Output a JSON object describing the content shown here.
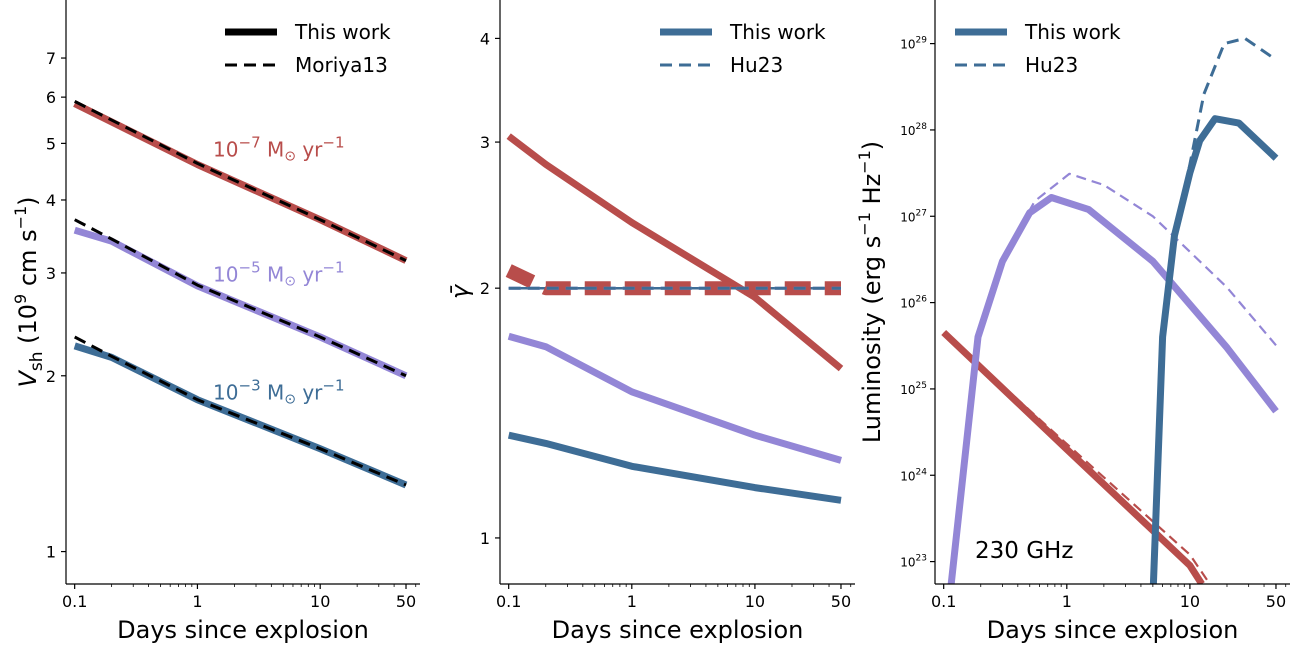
{
  "colors": {
    "red": "#b84d4b",
    "purple": "#9386d6",
    "blue": "#3e6d96",
    "black": "#000000"
  },
  "chart_data": [
    {
      "type": "line",
      "x_scale": "log",
      "y_scale": "log",
      "xlim": [
        0.085,
        65
      ],
      "ylim": [
        0.88,
        8.8
      ],
      "xticks": [
        0.1,
        1,
        10,
        50
      ],
      "xtick_labels": [
        "0.1",
        "1",
        "10",
        "50"
      ],
      "yticks": [
        1,
        2,
        3,
        4,
        5,
        6,
        7
      ],
      "ytick_labels": [
        "1",
        "2",
        "3",
        "4",
        "5",
        "6",
        "7"
      ],
      "xlabel": "Days since explosion",
      "ylabel": {
        "main": "V",
        "sub": "sh",
        "rest": " (10",
        "sup": "9",
        "unit": " cm s",
        "unitsup": "−1",
        "close": ")"
      },
      "legend": {
        "placement": "top-right",
        "entries": [
          {
            "label": "This work",
            "style": "solid-thick",
            "color": "#000000"
          },
          {
            "label": "Moriya13",
            "style": "dashed",
            "color": "#000000"
          }
        ]
      },
      "annotations": [
        {
          "base": "10",
          "exp": "−7",
          "unit": " M",
          "sun": "⊙",
          "rate": " yr",
          "rexp": "−1",
          "color": "#b84d4b",
          "x": 4.6,
          "y": 4.75
        },
        {
          "base": "10",
          "exp": "−5",
          "unit": " M",
          "sun": "⊙",
          "rate": " yr",
          "rexp": "−1",
          "color": "#9386d6",
          "x": 4.6,
          "y": 2.9
        },
        {
          "base": "10",
          "exp": "−3",
          "unit": " M",
          "sun": "⊙",
          "rate": " yr",
          "rexp": "−1",
          "color": "#3e6d96",
          "x": 4.6,
          "y": 1.82
        }
      ],
      "series": [
        {
          "color": "#b84d4b",
          "style": "solid-thick",
          "x": [
            0.1,
            1,
            10,
            50
          ],
          "y": [
            5.85,
            4.6,
            3.7,
            3.15
          ]
        },
        {
          "color": "#000000",
          "style": "dashed",
          "x": [
            0.1,
            1,
            10,
            50
          ],
          "y": [
            5.9,
            4.62,
            3.7,
            3.15
          ]
        },
        {
          "color": "#9386d6",
          "style": "solid-thick",
          "x": [
            0.1,
            0.2,
            1,
            10,
            50
          ],
          "y": [
            3.55,
            3.4,
            2.85,
            2.33,
            2.0
          ]
        },
        {
          "color": "#000000",
          "style": "dashed",
          "x": [
            0.1,
            0.2,
            1,
            10,
            50
          ],
          "y": [
            3.7,
            3.43,
            2.86,
            2.33,
            2.0
          ]
        },
        {
          "color": "#3e6d96",
          "style": "solid-thick",
          "x": [
            0.1,
            0.2,
            1,
            10,
            50
          ],
          "y": [
            2.25,
            2.15,
            1.82,
            1.5,
            1.3
          ]
        },
        {
          "color": "#000000",
          "style": "dashed",
          "x": [
            0.1,
            0.2,
            1,
            10,
            50
          ],
          "y": [
            2.33,
            2.16,
            1.82,
            1.5,
            1.3
          ]
        }
      ]
    },
    {
      "type": "line",
      "x_scale": "log",
      "y_scale": "log",
      "xlim": [
        0.085,
        65
      ],
      "ylim": [
        0.88,
        4.45
      ],
      "xticks": [
        0.1,
        1,
        10,
        50
      ],
      "xtick_labels": [
        "0.1",
        "1",
        "10",
        "50"
      ],
      "yticks": [
        1,
        2,
        3,
        4
      ],
      "ytick_labels": [
        "1",
        "2",
        "3",
        "4"
      ],
      "xlabel": "Days since explosion",
      "ylabel": {
        "main": "γ̄"
      },
      "legend": {
        "placement": "top-right",
        "entries": [
          {
            "label": "This work",
            "style": "solid-thick",
            "color": "#3e6d96"
          },
          {
            "label": "Hu23",
            "style": "dashed",
            "color": "#3e6d96"
          }
        ]
      },
      "series": [
        {
          "color": "#b84d4b",
          "style": "solid-thick",
          "x": [
            0.1,
            0.2,
            1,
            10,
            50
          ],
          "y": [
            3.05,
            2.82,
            2.4,
            1.95,
            1.6
          ]
        },
        {
          "color": "#9386d6",
          "style": "solid-thick",
          "x": [
            0.1,
            0.2,
            1,
            10,
            50
          ],
          "y": [
            1.75,
            1.7,
            1.5,
            1.33,
            1.24
          ]
        },
        {
          "color": "#3e6d96",
          "style": "solid-thick",
          "x": [
            0.1,
            0.2,
            1,
            10,
            50
          ],
          "y": [
            1.33,
            1.3,
            1.22,
            1.15,
            1.11
          ]
        },
        {
          "color": "#9386d6",
          "style": "solid-thin",
          "x": [
            0.1,
            50
          ],
          "y": [
            2.0,
            2.0
          ]
        },
        {
          "color": "#3e6d96",
          "style": "solid-thin",
          "x": [
            0.1,
            50
          ],
          "y": [
            2.0,
            2.0
          ]
        },
        {
          "color": "#b84d4b",
          "style": "dashed-wide",
          "x": [
            0.1,
            0.2,
            0.3,
            50
          ],
          "y": [
            2.1,
            2.0,
            2.0,
            2.0
          ]
        },
        {
          "color": "#9386d6",
          "style": "dashed",
          "x": [
            0.1,
            50
          ],
          "y": [
            2.0,
            2.0
          ]
        },
        {
          "color": "#3e6d96",
          "style": "dashed",
          "x": [
            0.1,
            50
          ],
          "y": [
            2.0,
            2.0
          ]
        }
      ]
    },
    {
      "type": "line",
      "x_scale": "log",
      "y_scale": "log",
      "xlim": [
        0.085,
        65
      ],
      "ylim": [
        5.5e+22,
        3.2e+29
      ],
      "xticks": [
        0.1,
        1,
        10,
        50
      ],
      "xtick_labels": [
        "0.1",
        "1",
        "10",
        "50"
      ],
      "yticks": [
        1e+23,
        1e+24,
        1e+25,
        1e+26,
        1e+27,
        1e+28,
        1e+29
      ],
      "ytick_exps": [
        "23",
        "24",
        "25",
        "26",
        "27",
        "28",
        "29"
      ],
      "xlabel": "Days since explosion",
      "ylabel": {
        "main": "Luminosity (erg s",
        "sup1": "−1",
        "mid": " Hz",
        "sup2": "−1",
        "close": ")"
      },
      "legend": {
        "placement": "top-left",
        "entries": [
          {
            "label": "This work",
            "style": "solid-thick",
            "color": "#3e6d96"
          },
          {
            "label": "Hu23",
            "style": "dashed",
            "color": "#3e6d96"
          }
        ]
      },
      "annotation": "230 GHz",
      "series": [
        {
          "color": "#b84d4b",
          "style": "solid-thick",
          "x": [
            0.1,
            1,
            10,
            12.5
          ],
          "y": [
            4.5e+25,
            2e+24,
            9e+22,
            5.5e+22
          ]
        },
        {
          "color": "#b84d4b",
          "style": "dashed-thin",
          "x": [
            0.1,
            1,
            10,
            14.5
          ],
          "y": [
            4.5e+25,
            2.3e+24,
            1.2e+23,
            5.5e+22
          ]
        },
        {
          "color": "#9386d6",
          "style": "solid-thick",
          "x": [
            0.115,
            0.19,
            0.3,
            0.5,
            0.75,
            1.5,
            5,
            20,
            50
          ],
          "y": [
            5.5e+22,
            4e+25,
            3e+26,
            1.1e+27,
            1.65e+27,
            1.2e+27,
            3e+26,
            3e+25,
            5.5e+24
          ]
        },
        {
          "color": "#9386d6",
          "style": "dashed-thin",
          "x": [
            0.115,
            0.19,
            0.3,
            0.55,
            1.05,
            2,
            5,
            20,
            50
          ],
          "y": [
            5.5e+22,
            4e+25,
            3.2e+26,
            1.5e+27,
            3.1e+27,
            2.3e+27,
            1e+27,
            1.5e+26,
            3.2e+25
          ]
        },
        {
          "color": "#3e6d96",
          "style": "solid-thick",
          "x": [
            5.05,
            6,
            7.5,
            10,
            12,
            16,
            25,
            50
          ],
          "y": [
            5.5e+22,
            4e+25,
            6e+26,
            3.2e+27,
            7.5e+27,
            1.35e+28,
            1.2e+28,
            4.7e+27
          ]
        },
        {
          "color": "#3e6d96",
          "style": "dashed",
          "x": [
            5.05,
            6,
            7.5,
            10,
            13,
            19,
            28,
            50
          ],
          "y": [
            5.5e+22,
            4e+25,
            6e+26,
            4e+27,
            2.6e+28,
            1e+29,
            1.15e+29,
            6.5e+28
          ]
        }
      ]
    }
  ]
}
